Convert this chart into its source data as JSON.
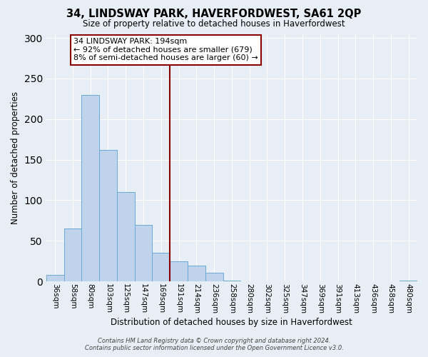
{
  "title": "34, LINDSWAY PARK, HAVERFORDWEST, SA61 2QP",
  "subtitle": "Size of property relative to detached houses in Haverfordwest",
  "xlabel": "Distribution of detached houses by size in Haverfordwest",
  "ylabel": "Number of detached properties",
  "bar_labels": [
    "36sqm",
    "58sqm",
    "80sqm",
    "103sqm",
    "125sqm",
    "147sqm",
    "169sqm",
    "191sqm",
    "214sqm",
    "236sqm",
    "258sqm",
    "280sqm",
    "302sqm",
    "325sqm",
    "347sqm",
    "369sqm",
    "391sqm",
    "413sqm",
    "436sqm",
    "458sqm",
    "480sqm"
  ],
  "bar_values": [
    8,
    65,
    230,
    162,
    110,
    70,
    35,
    25,
    19,
    11,
    1,
    0,
    0,
    0,
    0,
    0,
    0,
    0,
    0,
    0,
    1
  ],
  "bar_color": "#bfd4ec",
  "bar_edge_color": "#6aaad4",
  "background_color": "#e8eef5",
  "ylim": [
    0,
    305
  ],
  "yticks": [
    0,
    50,
    100,
    150,
    200,
    250,
    300
  ],
  "vline_x_index": 7,
  "vline_color": "#8b0000",
  "annotation_title": "34 LINDSWAY PARK: 194sqm",
  "annotation_line1": "← 92% of detached houses are smaller (679)",
  "annotation_line2": "8% of semi-detached houses are larger (60) →",
  "annotation_box_color": "#ffffff",
  "annotation_box_edge": "#8b0000",
  "footer1": "Contains HM Land Registry data © Crown copyright and database right 2024.",
  "footer2": "Contains public sector information licensed under the Open Government Licence v3.0."
}
